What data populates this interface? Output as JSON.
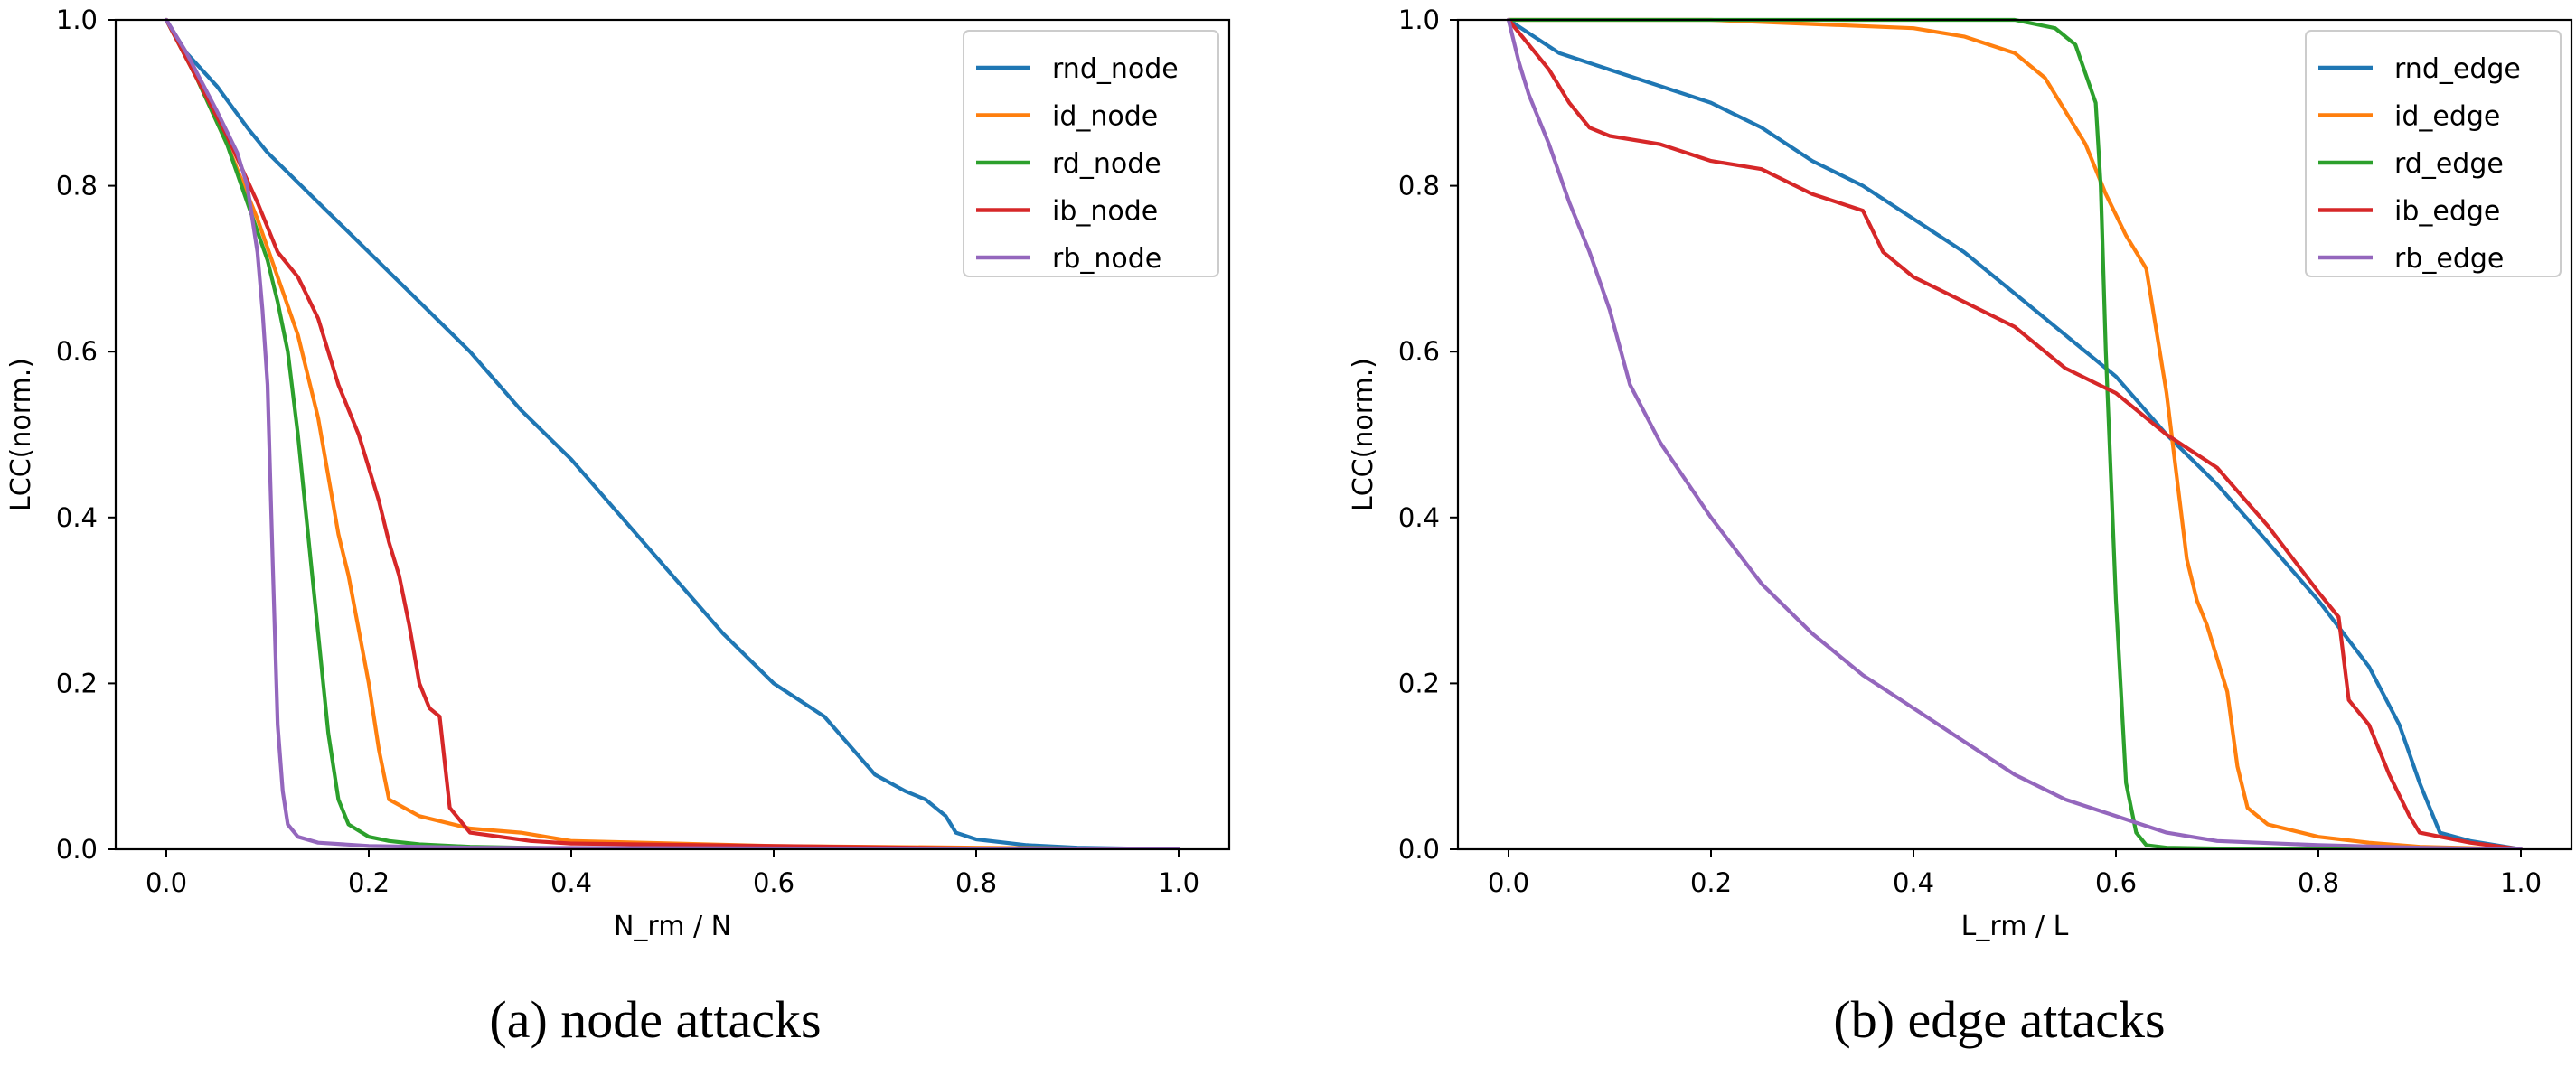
{
  "chart_data": [
    {
      "type": "line",
      "caption": "(a) node attacks",
      "xlabel": "N_rm / N",
      "ylabel": "LCC(norm.)",
      "xlim": [
        -0.05,
        1.05
      ],
      "ylim": [
        0.0,
        1.0
      ],
      "xticks": [
        "0.0",
        "0.2",
        "0.4",
        "0.6",
        "0.8",
        "1.0"
      ],
      "yticks": [
        "0.0",
        "0.2",
        "0.4",
        "0.6",
        "0.8",
        "1.0"
      ],
      "legend_position": "top-right",
      "series": [
        {
          "name": "rnd_node",
          "color": "#1f77b4",
          "x": [
            0,
            0.02,
            0.05,
            0.08,
            0.1,
            0.15,
            0.2,
            0.25,
            0.3,
            0.35,
            0.4,
            0.45,
            0.5,
            0.55,
            0.6,
            0.65,
            0.7,
            0.73,
            0.75,
            0.77,
            0.78,
            0.8,
            0.85,
            0.9,
            1.0
          ],
          "y": [
            1.0,
            0.96,
            0.92,
            0.87,
            0.84,
            0.78,
            0.72,
            0.66,
            0.6,
            0.53,
            0.47,
            0.4,
            0.33,
            0.26,
            0.2,
            0.16,
            0.09,
            0.07,
            0.06,
            0.04,
            0.02,
            0.012,
            0.005,
            0.002,
            0.0
          ]
        },
        {
          "name": "id_node",
          "color": "#ff7f0e",
          "x": [
            0,
            0.03,
            0.06,
            0.09,
            0.11,
            0.13,
            0.15,
            0.17,
            0.18,
            0.2,
            0.21,
            0.22,
            0.25,
            0.3,
            0.35,
            0.4,
            0.6,
            0.8,
            1.0
          ],
          "y": [
            1.0,
            0.93,
            0.85,
            0.76,
            0.69,
            0.62,
            0.52,
            0.38,
            0.33,
            0.2,
            0.12,
            0.06,
            0.04,
            0.025,
            0.02,
            0.01,
            0.004,
            0.002,
            0.0
          ]
        },
        {
          "name": "rd_node",
          "color": "#2ca02c",
          "x": [
            0,
            0.03,
            0.06,
            0.08,
            0.1,
            0.11,
            0.12,
            0.13,
            0.14,
            0.15,
            0.16,
            0.17,
            0.18,
            0.2,
            0.22,
            0.25,
            0.3,
            0.4,
            1.0
          ],
          "y": [
            1.0,
            0.93,
            0.85,
            0.78,
            0.71,
            0.66,
            0.6,
            0.5,
            0.38,
            0.26,
            0.14,
            0.06,
            0.03,
            0.015,
            0.01,
            0.006,
            0.003,
            0.001,
            0.0
          ]
        },
        {
          "name": "ib_node",
          "color": "#d62728",
          "x": [
            0,
            0.03,
            0.06,
            0.09,
            0.11,
            0.13,
            0.15,
            0.17,
            0.19,
            0.2,
            0.21,
            0.22,
            0.23,
            0.24,
            0.25,
            0.26,
            0.27,
            0.28,
            0.3,
            0.33,
            0.36,
            0.4,
            0.6,
            0.8,
            1.0
          ],
          "y": [
            1.0,
            0.93,
            0.86,
            0.78,
            0.72,
            0.69,
            0.64,
            0.56,
            0.5,
            0.46,
            0.42,
            0.37,
            0.33,
            0.27,
            0.2,
            0.17,
            0.16,
            0.05,
            0.02,
            0.015,
            0.01,
            0.007,
            0.004,
            0.001,
            0.0
          ]
        },
        {
          "name": "rb_node",
          "color": "#9467bd",
          "x": [
            0,
            0.02,
            0.05,
            0.07,
            0.08,
            0.09,
            0.095,
            0.1,
            0.105,
            0.11,
            0.115,
            0.12,
            0.13,
            0.15,
            0.2,
            0.3,
            1.0
          ],
          "y": [
            1.0,
            0.96,
            0.89,
            0.84,
            0.8,
            0.72,
            0.65,
            0.56,
            0.35,
            0.15,
            0.07,
            0.03,
            0.015,
            0.008,
            0.004,
            0.002,
            0.0
          ]
        }
      ]
    },
    {
      "type": "line",
      "caption": "(b) edge attacks",
      "xlabel": "L_rm / L",
      "ylabel": "LCC(norm.)",
      "xlim": [
        -0.05,
        1.05
      ],
      "ylim": [
        0.0,
        1.0
      ],
      "xticks": [
        "0.0",
        "0.2",
        "0.4",
        "0.6",
        "0.8",
        "1.0"
      ],
      "yticks": [
        "0.0",
        "0.2",
        "0.4",
        "0.6",
        "0.8",
        "1.0"
      ],
      "legend_position": "top-right",
      "series": [
        {
          "name": "rnd_edge",
          "color": "#1f77b4",
          "x": [
            0,
            0.05,
            0.1,
            0.15,
            0.2,
            0.25,
            0.3,
            0.35,
            0.4,
            0.45,
            0.5,
            0.55,
            0.6,
            0.65,
            0.7,
            0.75,
            0.8,
            0.85,
            0.88,
            0.9,
            0.92,
            0.95,
            1.0
          ],
          "y": [
            1.0,
            0.96,
            0.94,
            0.92,
            0.9,
            0.87,
            0.83,
            0.8,
            0.76,
            0.72,
            0.67,
            0.62,
            0.57,
            0.5,
            0.44,
            0.37,
            0.3,
            0.22,
            0.15,
            0.08,
            0.02,
            0.01,
            0.0
          ]
        },
        {
          "name": "id_edge",
          "color": "#ff7f0e",
          "x": [
            0,
            0.1,
            0.2,
            0.3,
            0.4,
            0.45,
            0.5,
            0.53,
            0.55,
            0.57,
            0.59,
            0.61,
            0.63,
            0.65,
            0.66,
            0.67,
            0.68,
            0.69,
            0.7,
            0.71,
            0.72,
            0.73,
            0.75,
            0.8,
            0.85,
            0.9,
            1.0
          ],
          "y": [
            1.0,
            1.0,
            1.0,
            0.995,
            0.99,
            0.98,
            0.96,
            0.93,
            0.89,
            0.85,
            0.79,
            0.74,
            0.7,
            0.55,
            0.45,
            0.35,
            0.3,
            0.27,
            0.23,
            0.19,
            0.1,
            0.05,
            0.03,
            0.015,
            0.008,
            0.003,
            0.0
          ]
        },
        {
          "name": "rd_edge",
          "color": "#2ca02c",
          "x": [
            0,
            0.2,
            0.4,
            0.5,
            0.54,
            0.56,
            0.58,
            0.585,
            0.59,
            0.6,
            0.61,
            0.62,
            0.63,
            0.65,
            0.7,
            0.8,
            1.0
          ],
          "y": [
            1.0,
            1.0,
            1.0,
            1.0,
            0.99,
            0.97,
            0.9,
            0.8,
            0.6,
            0.3,
            0.08,
            0.02,
            0.005,
            0.002,
            0.001,
            0.0,
            0.0
          ]
        },
        {
          "name": "ib_edge",
          "color": "#d62728",
          "x": [
            0,
            0.02,
            0.04,
            0.06,
            0.08,
            0.1,
            0.15,
            0.2,
            0.25,
            0.3,
            0.35,
            0.37,
            0.4,
            0.45,
            0.5,
            0.55,
            0.6,
            0.65,
            0.7,
            0.75,
            0.8,
            0.82,
            0.83,
            0.85,
            0.87,
            0.89,
            0.9,
            0.95,
            1.0
          ],
          "y": [
            1.0,
            0.97,
            0.94,
            0.9,
            0.87,
            0.86,
            0.85,
            0.83,
            0.82,
            0.79,
            0.77,
            0.72,
            0.69,
            0.66,
            0.63,
            0.58,
            0.55,
            0.5,
            0.46,
            0.39,
            0.31,
            0.28,
            0.18,
            0.15,
            0.09,
            0.04,
            0.02,
            0.008,
            0.0
          ]
        },
        {
          "name": "rb_edge",
          "color": "#9467bd",
          "x": [
            0,
            0.01,
            0.02,
            0.04,
            0.06,
            0.08,
            0.1,
            0.12,
            0.15,
            0.2,
            0.25,
            0.3,
            0.35,
            0.4,
            0.45,
            0.5,
            0.55,
            0.6,
            0.65,
            0.7,
            0.8,
            0.9,
            1.0
          ],
          "y": [
            1.0,
            0.95,
            0.91,
            0.85,
            0.78,
            0.72,
            0.65,
            0.56,
            0.49,
            0.4,
            0.32,
            0.26,
            0.21,
            0.17,
            0.13,
            0.09,
            0.06,
            0.04,
            0.02,
            0.01,
            0.005,
            0.002,
            0.0
          ]
        }
      ]
    }
  ]
}
